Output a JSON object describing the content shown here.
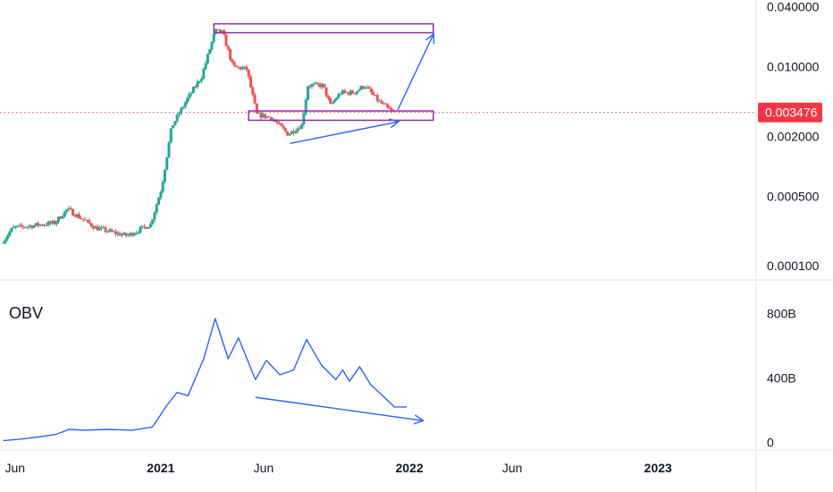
{
  "chart_data": [
    {
      "type": "candlestick",
      "scale": "log",
      "ylim": [
        8.5e-05,
        0.045
      ],
      "yticks": [
        {
          "value": 0.04,
          "label": "0.040000"
        },
        {
          "value": 0.01,
          "label": "0.010000"
        },
        {
          "value": 0.002,
          "label": "0.002000"
        },
        {
          "value": 0.0005,
          "label": "0.000500"
        },
        {
          "value": 0.0001,
          "label": "0.000100"
        }
      ],
      "last_price": {
        "value": 0.003476,
        "label": "0.003476",
        "color": "#f23645"
      },
      "up_color": "#26a69a",
      "down_color": "#ef5350",
      "anchors": [
        {
          "date": "2020-05-15",
          "price": 0.00017
        },
        {
          "date": "2020-06-01",
          "price": 0.00024
        },
        {
          "date": "2020-08-01",
          "price": 0.00027
        },
        {
          "date": "2020-08-20",
          "price": 0.00037
        },
        {
          "date": "2020-10-01",
          "price": 0.00024
        },
        {
          "date": "2020-11-15",
          "price": 0.0002
        },
        {
          "date": "2020-12-20",
          "price": 0.00026
        },
        {
          "date": "2021-01-05",
          "price": 0.0006
        },
        {
          "date": "2021-01-20",
          "price": 0.0025
        },
        {
          "date": "2021-02-10",
          "price": 0.0045
        },
        {
          "date": "2021-03-05",
          "price": 0.008
        },
        {
          "date": "2021-03-25",
          "price": 0.023
        },
        {
          "date": "2021-04-05",
          "price": 0.022
        },
        {
          "date": "2021-04-20",
          "price": 0.01
        },
        {
          "date": "2021-05-10",
          "price": 0.0095
        },
        {
          "date": "2021-05-25",
          "price": 0.0033
        },
        {
          "date": "2021-06-15",
          "price": 0.0031
        },
        {
          "date": "2021-07-10",
          "price": 0.0021
        },
        {
          "date": "2021-07-30",
          "price": 0.0026
        },
        {
          "date": "2021-08-08",
          "price": 0.0065
        },
        {
          "date": "2021-08-30",
          "price": 0.0065
        },
        {
          "date": "2021-09-10",
          "price": 0.0041
        },
        {
          "date": "2021-09-25",
          "price": 0.0055
        },
        {
          "date": "2021-10-15",
          "price": 0.0055
        },
        {
          "date": "2021-10-30",
          "price": 0.0065
        },
        {
          "date": "2021-11-20",
          "price": 0.0045
        },
        {
          "date": "2021-12-10",
          "price": 0.0035
        }
      ],
      "zones": [
        {
          "date_from": "2021-03-20",
          "date_to": "2022-02-05",
          "price_high": 0.027,
          "price_low": 0.022,
          "color": "#9c27b0"
        },
        {
          "date_from": "2021-05-10",
          "date_to": "2022-02-05",
          "price_high": 0.0036,
          "price_low": 0.0029,
          "color": "#9c27b0"
        }
      ],
      "arrows": [
        {
          "from": {
            "date": "2021-07-10",
            "price": 0.0017
          },
          "to": {
            "date": "2021-12-15",
            "price": 0.0028
          },
          "color": "#2962ff"
        },
        {
          "from": {
            "date": "2021-12-15",
            "price": 0.0037
          },
          "to": {
            "date": "2022-02-05",
            "price": 0.021
          },
          "color": "#2962ff"
        }
      ]
    },
    {
      "type": "line",
      "name": "OBV",
      "ylim": [
        -20,
        960
      ],
      "yticks": [
        {
          "value": 800,
          "label": "800B"
        },
        {
          "value": 400,
          "label": "400B"
        },
        {
          "value": 0,
          "label": "0"
        }
      ],
      "color": "#2962ff",
      "series": [
        {
          "date": "2020-05-15",
          "value": 10
        },
        {
          "date": "2020-06-10",
          "value": 20
        },
        {
          "date": "2020-07-10",
          "value": 35
        },
        {
          "date": "2020-08-01",
          "value": 50
        },
        {
          "date": "2020-08-20",
          "value": 80
        },
        {
          "date": "2020-09-10",
          "value": 75
        },
        {
          "date": "2020-10-15",
          "value": 80
        },
        {
          "date": "2020-11-20",
          "value": 75
        },
        {
          "date": "2020-12-20",
          "value": 95
        },
        {
          "date": "2021-01-10",
          "value": 230
        },
        {
          "date": "2021-01-25",
          "value": 310
        },
        {
          "date": "2021-02-10",
          "value": 290
        },
        {
          "date": "2021-03-05",
          "value": 520
        },
        {
          "date": "2021-03-22",
          "value": 770
        },
        {
          "date": "2021-04-10",
          "value": 520
        },
        {
          "date": "2021-04-25",
          "value": 650
        },
        {
          "date": "2021-05-20",
          "value": 390
        },
        {
          "date": "2021-06-05",
          "value": 510
        },
        {
          "date": "2021-06-25",
          "value": 420
        },
        {
          "date": "2021-07-15",
          "value": 450
        },
        {
          "date": "2021-08-03",
          "value": 640
        },
        {
          "date": "2021-08-25",
          "value": 480
        },
        {
          "date": "2021-09-15",
          "value": 390
        },
        {
          "date": "2021-09-25",
          "value": 450
        },
        {
          "date": "2021-10-05",
          "value": 380
        },
        {
          "date": "2021-10-20",
          "value": 470
        },
        {
          "date": "2021-11-05",
          "value": 360
        },
        {
          "date": "2021-11-25",
          "value": 280
        },
        {
          "date": "2021-12-10",
          "value": 220
        },
        {
          "date": "2021-12-28",
          "value": 220
        }
      ],
      "arrows": [
        {
          "from": {
            "date": "2021-05-20",
            "value": 280
          },
          "to": {
            "date": "2022-01-20",
            "value": 135
          },
          "color": "#2962ff"
        }
      ]
    }
  ],
  "labels": {
    "obv_title": "OBV"
  },
  "x_axis": {
    "ticks": [
      {
        "date": "2020-06-01",
        "label": "Jun",
        "bold": false
      },
      {
        "date": "2021-01-01",
        "label": "2021",
        "bold": true
      },
      {
        "date": "2021-06-01",
        "label": "Jun",
        "bold": false
      },
      {
        "date": "2022-01-01",
        "label": "2022",
        "bold": true
      },
      {
        "date": "2022-06-01",
        "label": "Jun",
        "bold": false
      },
      {
        "date": "2023-01-01",
        "label": "2023",
        "bold": true
      }
    ]
  }
}
